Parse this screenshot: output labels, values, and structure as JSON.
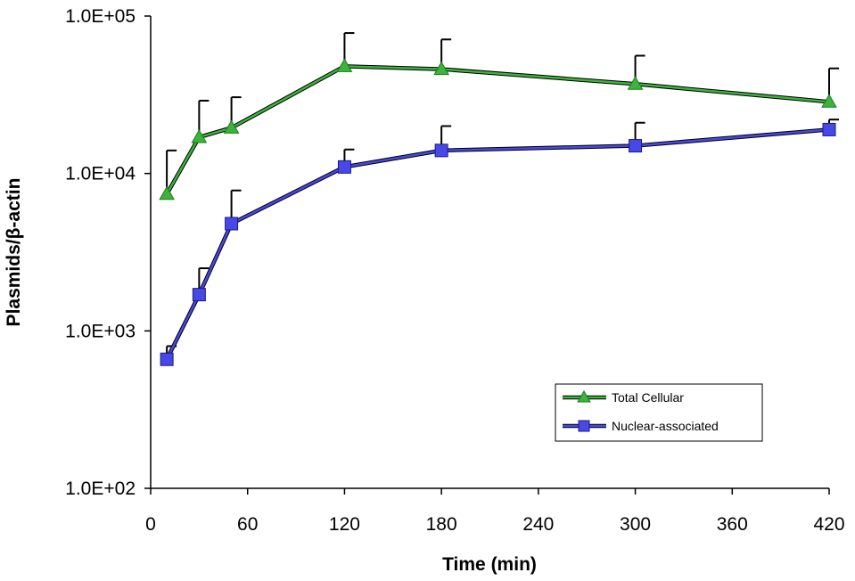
{
  "chart_data": {
    "type": "line",
    "title": "",
    "xlabel": "Time (min)",
    "ylabel": "Plasmids/β-actin",
    "y_scale": "log",
    "xlim": [
      0,
      420
    ],
    "ylim": [
      100,
      100000
    ],
    "x_ticks": [
      0,
      60,
      120,
      180,
      240,
      300,
      360,
      420
    ],
    "x_tick_labels": [
      "0",
      "60",
      "120",
      "180",
      "240",
      "300",
      "360",
      "420"
    ],
    "y_ticks": [
      100,
      1000,
      10000,
      100000
    ],
    "y_tick_labels": [
      "1.0E+02",
      "1.0E+03",
      "1.0E+04",
      "1.0E+05"
    ],
    "grid": false,
    "legend_position": "bottom-right",
    "series": [
      {
        "name": "Total Cellular",
        "color": "#3cb43c",
        "marker": "triangle",
        "x": [
          10,
          30,
          50,
          120,
          180,
          300,
          420
        ],
        "y": [
          7400,
          17000,
          19500,
          48000,
          46000,
          37000,
          28500
        ],
        "error_upper": [
          14000,
          29000,
          30500,
          78000,
          71000,
          56000,
          46500
        ]
      },
      {
        "name": "Nuclear-associated",
        "color": "#4848e6",
        "marker": "square",
        "x": [
          10,
          30,
          50,
          120,
          180,
          300,
          420
        ],
        "y": [
          660,
          1700,
          4800,
          11000,
          14000,
          15000,
          19000
        ],
        "error_upper": [
          800,
          2500,
          7800,
          14200,
          20000,
          21000,
          22000
        ]
      }
    ]
  }
}
